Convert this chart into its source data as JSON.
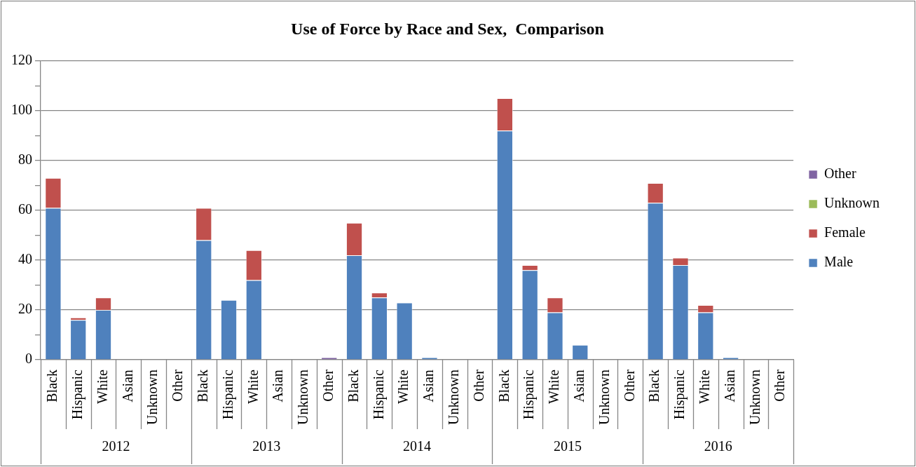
{
  "chart_data": {
    "type": "bar",
    "title": "Use of Force by Race and Sex,  Comparison",
    "stacked": true,
    "legend": "right",
    "grid": "y",
    "categories": [
      "Black",
      "Hispanic",
      "White",
      "Asian",
      "Unknown",
      "Other",
      "Black",
      "Hispanic",
      "White",
      "Asian",
      "Unknown",
      "Other",
      "Black",
      "Hispanic",
      "White",
      "Asian",
      "Unknown",
      "Other",
      "Black",
      "Hispanic",
      "White",
      "Asian",
      "Unknown",
      "Other",
      "Black",
      "Hispanic",
      "White",
      "Asian",
      "Unknown",
      "Other"
    ],
    "annotations": [
      "2012",
      "2013",
      "2014",
      "2015",
      "2016"
    ],
    "ylim": [
      0,
      120
    ],
    "yticks": [
      0,
      {
        "value": 10,
        "label": null
      },
      20,
      {
        "value": 30,
        "label": null
      },
      40,
      {
        "value": 50,
        "label": null
      },
      60,
      {
        "value": 70,
        "label": null
      },
      80,
      {
        "value": 90,
        "label": null
      },
      100,
      {
        "value": 110,
        "label": null
      },
      120
    ],
    "series": [
      {
        "name": "Male",
        "color": "#4f81bd",
        "values": [
          61,
          16,
          20,
          0,
          0,
          0,
          48,
          24,
          32,
          0,
          0,
          0,
          42,
          25,
          23,
          1,
          0,
          0,
          92,
          36,
          19,
          6,
          0,
          0,
          63,
          38,
          19,
          1,
          0,
          0
        ]
      },
      {
        "name": "Female",
        "color": "#c0504d",
        "values": [
          12,
          1,
          5,
          0,
          0,
          0,
          13,
          0,
          12,
          0,
          0,
          0,
          13,
          2,
          0,
          0,
          0,
          0,
          13,
          2,
          6,
          0,
          0,
          0,
          8,
          3,
          3,
          0,
          0,
          0
        ]
      },
      {
        "name": "Unknown",
        "color": "#9bbb59",
        "values": [
          0,
          0,
          0,
          0,
          0,
          0,
          0,
          0,
          0,
          0,
          0,
          0,
          0,
          0,
          0,
          0,
          0,
          0,
          0,
          0,
          0,
          0,
          0,
          0,
          0,
          0,
          0,
          0,
          0,
          0
        ]
      },
      {
        "name": "Other",
        "color": "#8064a2",
        "values": [
          0,
          0,
          0,
          0,
          0,
          0,
          0,
          0,
          0,
          0,
          0,
          1,
          0,
          0,
          0,
          0,
          0,
          0,
          0,
          0,
          0,
          0,
          0,
          0,
          0,
          0,
          0,
          0,
          0,
          0
        ]
      }
    ]
  }
}
